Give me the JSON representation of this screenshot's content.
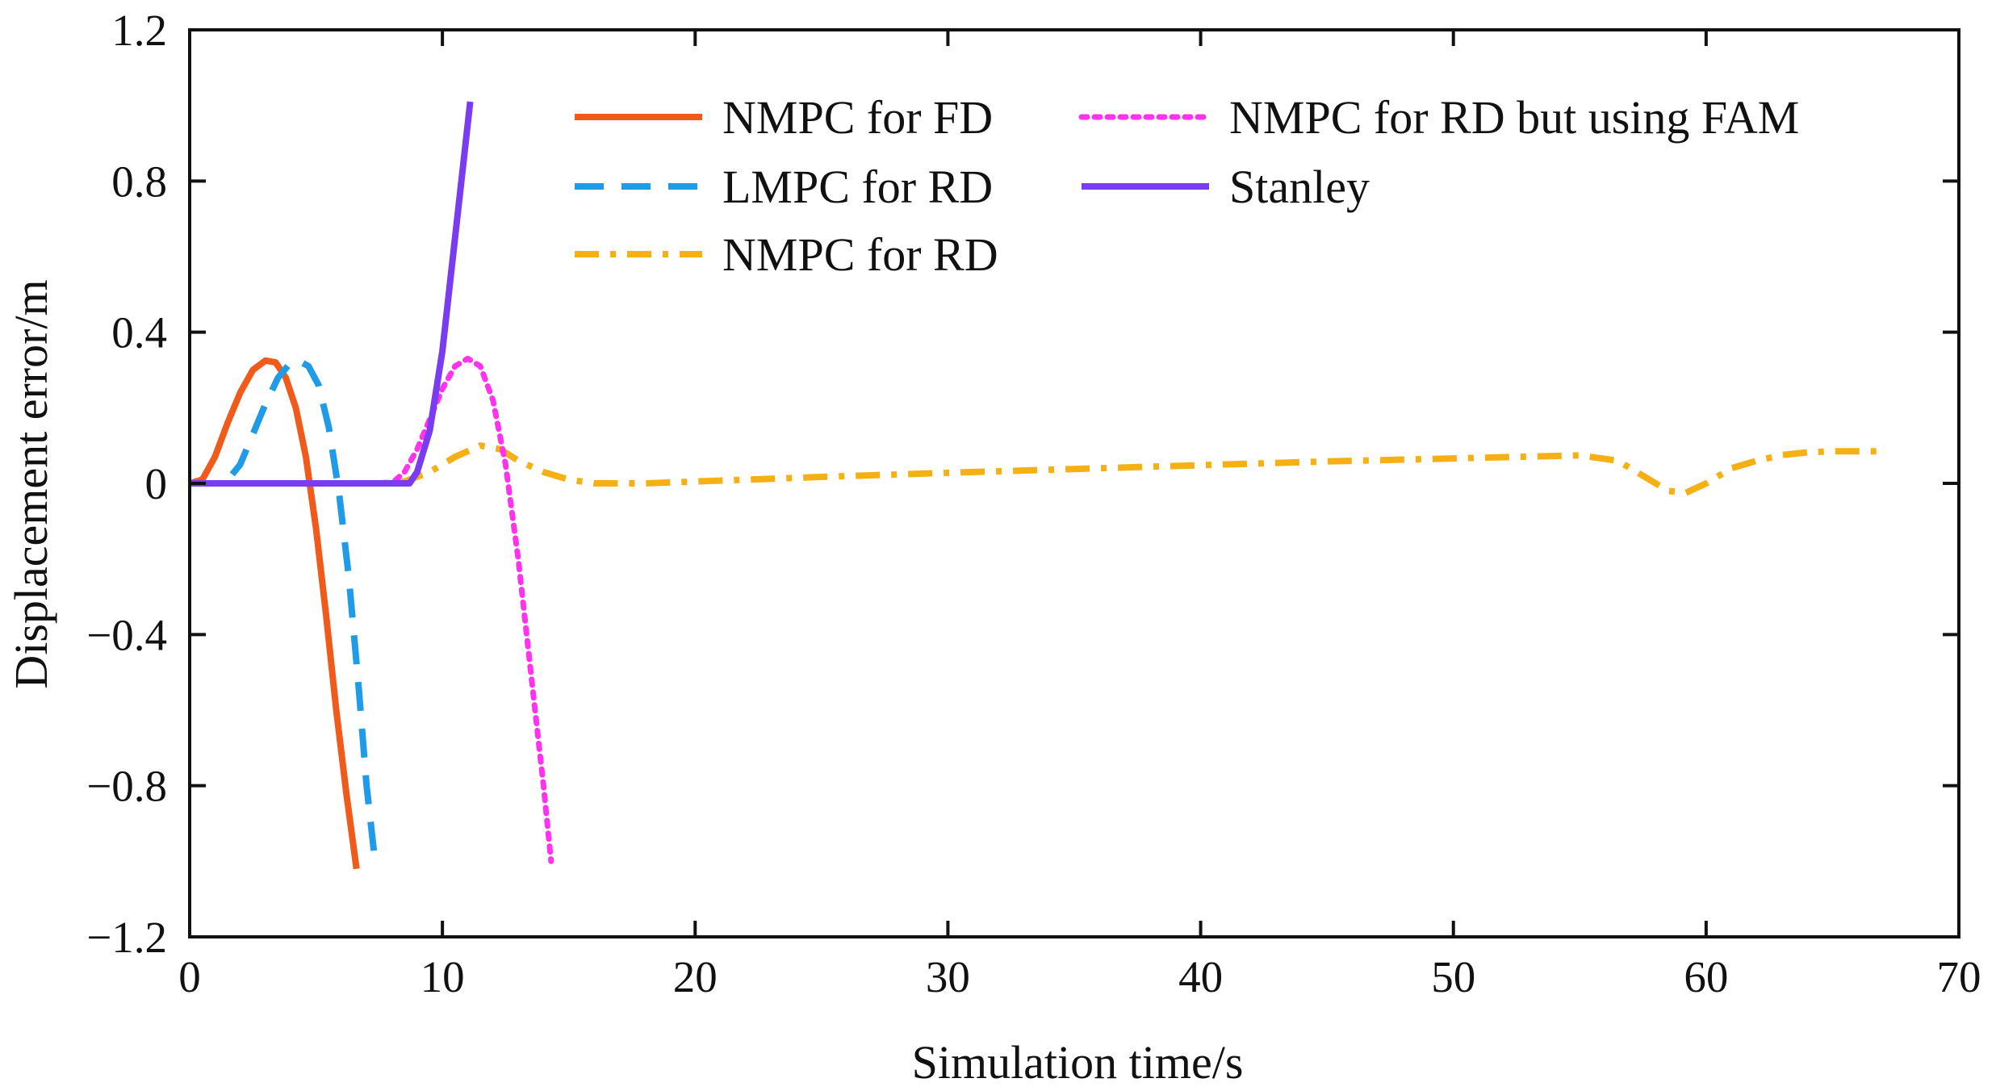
{
  "chart_data": {
    "type": "line",
    "title": "",
    "xlabel": "Simulation time/s",
    "ylabel": "Displacement error/m",
    "xlim": [
      0,
      70
    ],
    "ylim": [
      -1.2,
      1.2
    ],
    "x_ticks": [
      0,
      10,
      20,
      30,
      40,
      50,
      60,
      70
    ],
    "y_ticks": [
      -1.2,
      -0.8,
      -0.4,
      0,
      0.4,
      0.8,
      1.2
    ],
    "y_tick_labels": [
      "−1.2",
      "−0.8",
      "−0.4",
      "0",
      "0.4",
      "0.8",
      "1.2"
    ],
    "grid": false,
    "legend_position": "top",
    "series": [
      {
        "name": "NMPC for FD",
        "color": "#f05a1a",
        "style": "solid",
        "x": [
          0,
          0.5,
          1,
          1.5,
          2,
          2.5,
          3,
          3.4,
          3.8,
          4.2,
          4.6,
          5.0,
          5.4,
          5.8,
          6.2,
          6.6
        ],
        "y": [
          0,
          0.01,
          0.07,
          0.16,
          0.24,
          0.3,
          0.325,
          0.32,
          0.28,
          0.2,
          0.07,
          -0.12,
          -0.35,
          -0.6,
          -0.82,
          -1.02
        ]
      },
      {
        "name": "LMPC for RD",
        "color": "#1f9be8",
        "style": "dashed",
        "x": [
          0,
          1.4,
          2,
          2.5,
          3,
          3.5,
          4,
          4.3,
          4.7,
          5.1,
          5.5,
          5.9,
          6.3,
          6.7,
          7.0,
          7.3
        ],
        "y": [
          0,
          0,
          0.05,
          0.13,
          0.21,
          0.28,
          0.32,
          0.325,
          0.31,
          0.26,
          0.15,
          -0.02,
          -0.25,
          -0.55,
          -0.8,
          -0.98
        ]
      },
      {
        "name": "NMPC for RD",
        "color": "#f5b014",
        "style": "dashdot",
        "x": [
          0,
          7.5,
          8.5,
          9.5,
          10.5,
          11.5,
          12.3,
          13,
          14,
          15,
          16,
          17,
          18,
          20,
          25,
          30,
          35,
          40,
          45,
          50,
          55,
          56.5,
          57.5,
          58.5,
          59.2,
          60,
          61,
          62,
          63,
          64,
          65,
          67
        ],
        "y": [
          0,
          0,
          0.005,
          0.03,
          0.07,
          0.1,
          0.09,
          0.06,
          0.03,
          0.01,
          0.0,
          0.0,
          0.0,
          0.005,
          0.017,
          0.028,
          0.038,
          0.048,
          0.058,
          0.066,
          0.074,
          0.06,
          0.02,
          -0.02,
          -0.025,
          0.0,
          0.04,
          0.06,
          0.075,
          0.082,
          0.085,
          0.085
        ]
      },
      {
        "name": "NMPC for RD but using FAM",
        "color": "#ff33ee",
        "style": "dotted",
        "x": [
          0,
          8,
          8.5,
          9,
          9.5,
          10,
          10.5,
          11,
          11.5,
          12,
          12.5,
          13,
          13.5,
          14,
          14.3
        ],
        "y": [
          0,
          0,
          0.03,
          0.09,
          0.17,
          0.25,
          0.31,
          0.33,
          0.31,
          0.22,
          0.05,
          -0.2,
          -0.5,
          -0.8,
          -1.0
        ]
      },
      {
        "name": "Stanley",
        "color": "#7a3cf0",
        "style": "solid",
        "x": [
          0,
          8.7,
          9,
          9.5,
          10,
          10.5,
          11.1
        ],
        "y": [
          0,
          0,
          0.03,
          0.14,
          0.35,
          0.65,
          1.01
        ]
      }
    ]
  }
}
